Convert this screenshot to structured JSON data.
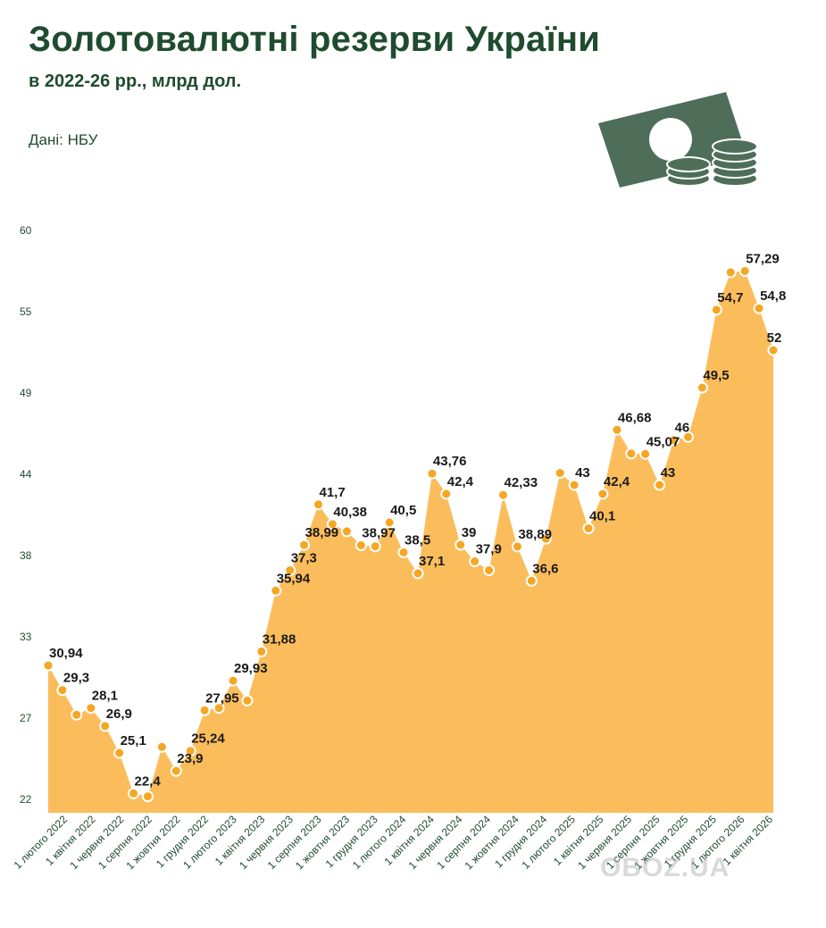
{
  "header": {
    "title": "Золотовалютні резерви України",
    "subtitle": "в 2022-26 рр., млрд дол.",
    "source": "Дані: НБУ"
  },
  "watermark": "OBOZ.UA",
  "colors": {
    "area": "#fbbd5c",
    "point": "#f5a623",
    "title": "#1f4b2e",
    "icon": "#4e6e5a"
  },
  "icons": [
    "money-banknote-icon",
    "coin-stack-icon"
  ],
  "chart_data": {
    "type": "area",
    "title": "Золотовалютні резерви України",
    "subtitle": "в 2022-26 рр., млрд дол.",
    "source": "Дані: НБУ",
    "y_tick_labels": [
      "22",
      "27",
      "33",
      "38",
      "44",
      "49",
      "55",
      "60"
    ],
    "x_tick_labels": [
      "1 лютого 2022",
      "1 квітня 2022",
      "1 червня 2022",
      "1 серпня 2022",
      "1 жовтня 2022",
      "1 грудня 2022",
      "1 лютого 2023",
      "1 квітня 2023",
      "1 червня 2023",
      "1 серпня 2023",
      "1 жовтня 2023",
      "1 грудня 2023",
      "1 лютого 2024",
      "1 квітня 2024",
      "1 червня 2024",
      "1 серпня 2024",
      "1 жовтня 2024",
      "1 грудня 2024",
      "1 лютого 2025",
      "1 квітня 2025",
      "1 червня 2025",
      "1 серпня 2025",
      "1 жовтня 2025",
      "1 грудня 2025",
      "1 лютого 2026",
      "1 квітня 2026"
    ],
    "ylim": [
      22,
      60
    ],
    "grid": false,
    "values": [
      30.94,
      29.3,
      27.65,
      28.1,
      26.9,
      25.1,
      22.4,
      22.2,
      25.5,
      23.9,
      25.24,
      27.95,
      28.1,
      29.93,
      28.6,
      31.88,
      35.94,
      37.3,
      38.99,
      41.7,
      40.38,
      39.9,
      38.97,
      38.9,
      40.5,
      38.5,
      37.1,
      43.76,
      42.4,
      39,
      37.9,
      37.3,
      42.33,
      38.89,
      36.6,
      39.4,
      43.8,
      43,
      40.1,
      42.4,
      46.68,
      45.1,
      45.07,
      43,
      46,
      46.2,
      49.5,
      54.7,
      57.2,
      57.29,
      54.8,
      52
    ],
    "labels": [
      "30,94",
      "29,3",
      "",
      "28,1",
      "26,9",
      "25,1",
      "22,4",
      "",
      "",
      "23,9",
      "25,24",
      "27,95",
      "",
      "29,93",
      "",
      "31,88",
      "35,94",
      "37,3",
      "38,99",
      "41,7",
      "40,38",
      "",
      "38,97",
      "",
      "40,5",
      "38,5",
      "37,1",
      "43,76",
      "42,4",
      "39",
      "37,9",
      "",
      "42,33",
      "38,89",
      "36,6",
      "",
      "",
      "43",
      "40,1",
      "42,4",
      "46,68",
      "",
      "45,07",
      "43",
      "46",
      "",
      "49,5",
      "54,7",
      "",
      "57,29",
      "54,8",
      "52"
    ]
  }
}
